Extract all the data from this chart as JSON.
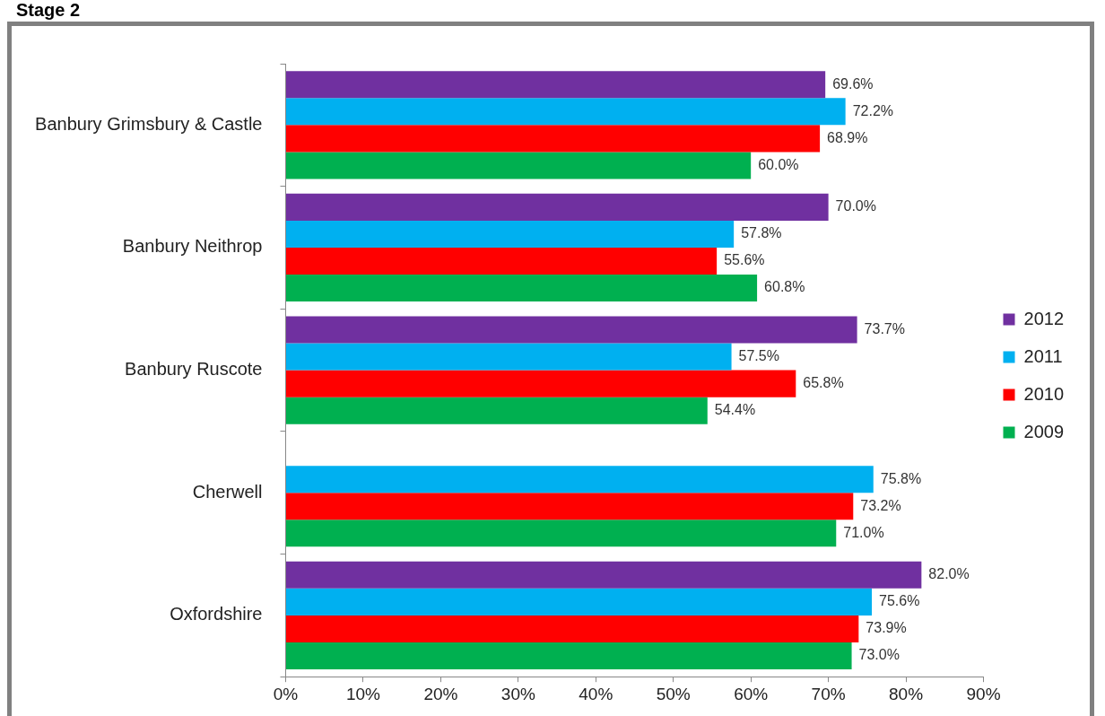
{
  "chart_data": {
    "type": "bar",
    "title": "Stage 2",
    "orientation": "horizontal",
    "categories": [
      "Banbury Grimsbury & Castle",
      "Banbury Neithrop",
      "Banbury Ruscote",
      "Cherwell",
      "Oxfordshire"
    ],
    "series": [
      {
        "name": "2012",
        "color": "#7030a0",
        "values": [
          69.6,
          70.0,
          73.7,
          null,
          82.0
        ],
        "value_labels": [
          "69.6%",
          "70.0%",
          "73.7%",
          null,
          "82.0%"
        ]
      },
      {
        "name": "2011",
        "color": "#00b0f0",
        "values": [
          72.2,
          57.8,
          57.5,
          75.8,
          75.6
        ],
        "value_labels": [
          "72.2%",
          "57.8%",
          "57.5%",
          "75.8%",
          "75.6%"
        ]
      },
      {
        "name": "2010",
        "color": "#ff0000",
        "values": [
          68.9,
          55.6,
          65.8,
          73.2,
          73.9
        ],
        "value_labels": [
          "68.9%",
          "55.6%",
          "65.8%",
          "73.2%",
          "73.9%"
        ]
      },
      {
        "name": "2009",
        "color": "#00b050",
        "values": [
          60.0,
          60.8,
          54.4,
          71.0,
          73.0
        ],
        "value_labels": [
          "60.0%",
          "60.8%",
          "54.4%",
          "71.0%",
          "73.0%"
        ]
      }
    ],
    "xlim": [
      0,
      90
    ],
    "xticks": [
      {
        "value": 0,
        "label": "0%"
      },
      {
        "value": 10,
        "label": "10%"
      },
      {
        "value": 20,
        "label": "20%"
      },
      {
        "value": 30,
        "label": "30%"
      },
      {
        "value": 40,
        "label": "40%"
      },
      {
        "value": 50,
        "label": "50%"
      },
      {
        "value": 60,
        "label": "60%"
      },
      {
        "value": 70,
        "label": "70%"
      },
      {
        "value": 80,
        "label": "80%"
      },
      {
        "value": 90,
        "label": "90%"
      }
    ],
    "grid": false,
    "legend": "right"
  }
}
